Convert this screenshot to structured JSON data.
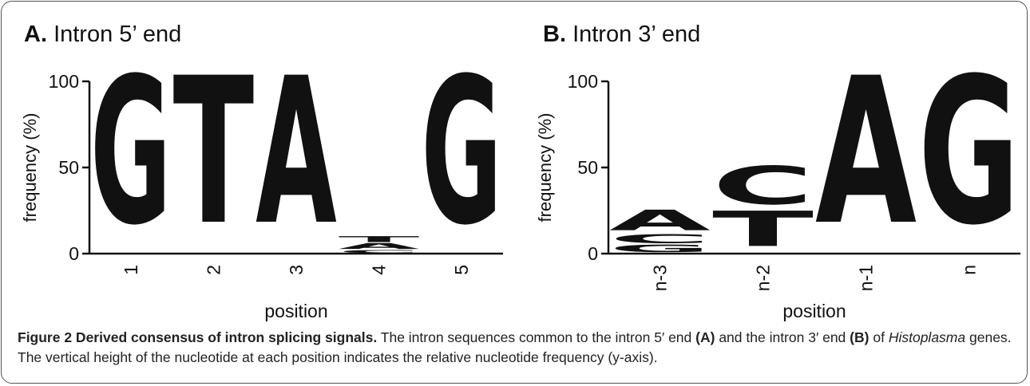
{
  "chart_data": [
    {
      "type": "logo",
      "panel": "A.",
      "title": "Intron 5’ end",
      "xlabel": "position",
      "ylabel": "frequency (%)",
      "categories": [
        "1",
        "2",
        "3",
        "4",
        "5"
      ],
      "series": [
        {
          "name": "A",
          "color": "#d0281c",
          "values": [
            0,
            0,
            100,
            4,
            0
          ]
        },
        {
          "name": "C",
          "color": "#3b3aa6",
          "values": [
            0,
            0,
            0,
            2,
            0
          ]
        },
        {
          "name": "G",
          "color": "#f5a900",
          "values": [
            100,
            0,
            0,
            0,
            100
          ]
        },
        {
          "name": "T",
          "color": "#16893b",
          "values": [
            0,
            100,
            0,
            4,
            0
          ]
        }
      ],
      "ylim": [
        0,
        100
      ],
      "yticks": [
        0,
        50,
        100
      ]
    },
    {
      "type": "logo",
      "panel": "B.",
      "title": "Intron 3’ end",
      "xlabel": "position",
      "ylabel": "frequency (%)",
      "categories": [
        "n-3",
        "n-2",
        "n-1",
        "n"
      ],
      "series": [
        {
          "name": "A",
          "color": "#d0281c",
          "values": [
            14,
            0,
            100,
            0
          ]
        },
        {
          "name": "C",
          "color": "#3b3aa6",
          "values": [
            6,
            26,
            0,
            0
          ]
        },
        {
          "name": "G",
          "color": "#f5a900",
          "values": [
            5,
            0,
            0,
            100
          ]
        },
        {
          "name": "T",
          "color": "#16893b",
          "values": [
            0,
            24,
            0,
            0
          ]
        }
      ],
      "ylim": [
        0,
        100
      ],
      "yticks": [
        0,
        50,
        100
      ]
    }
  ],
  "caption": [
    "Figure 2 Derived consensus of intron splicing signals.",
    "The intron sequences common to the intron 5′ end",
    "(A)",
    "and the intron 3′ end",
    "(B)",
    "of",
    "Histoplasma",
    "genes. The vertical height of the nucleotide at each position indicates the relative nucleotide frequency (y-axis)."
  ]
}
